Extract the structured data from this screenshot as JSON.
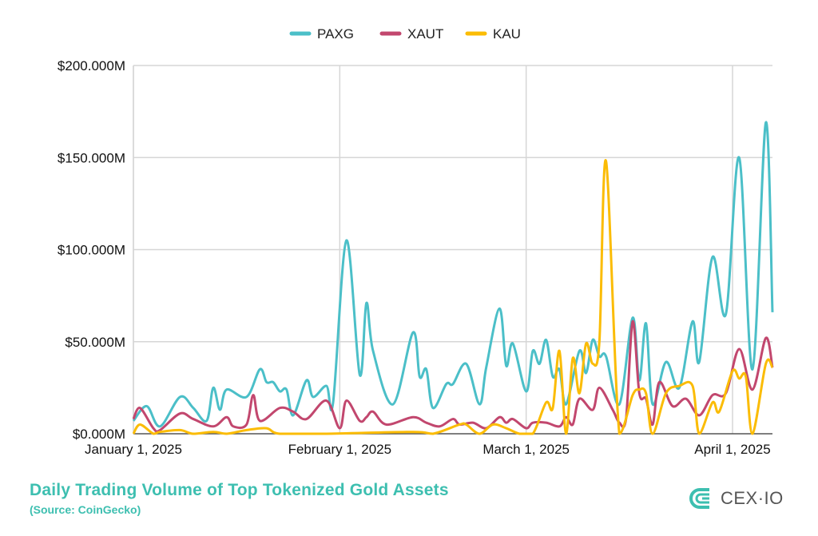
{
  "chart_data": {
    "type": "line",
    "title": "Daily Trading Volume of Top Tokenized Gold Assets",
    "subtitle": "(Source: CoinGecko)",
    "xlabel": "",
    "ylabel": "",
    "x_range": [
      "2025-01-01",
      "2025-04-07"
    ],
    "ylim": [
      0,
      200
    ],
    "y_unit": "millions USD",
    "y_ticks": [
      0,
      50,
      100,
      150,
      200
    ],
    "y_tick_labels": [
      "$0.000M",
      "$50.000M",
      "$100.000M",
      "$150.000M",
      "$200.000M"
    ],
    "x_ticks": [
      "2025-01-01",
      "2025-02-01",
      "2025-03-01",
      "2025-04-01"
    ],
    "x_tick_labels": [
      "January 1, 2025",
      "February 1, 2025",
      "March 1, 2025",
      "April 1, 2025"
    ],
    "grid": true,
    "legend_position": "top-center",
    "series": [
      {
        "name": "PAXG",
        "color": "#4bbfc8",
        "points": [
          [
            "2025-01-01",
            7
          ],
          [
            "2025-01-03",
            15
          ],
          [
            "2025-01-05",
            4
          ],
          [
            "2025-01-08",
            20
          ],
          [
            "2025-01-10",
            14
          ],
          [
            "2025-01-12",
            7
          ],
          [
            "2025-01-13",
            25
          ],
          [
            "2025-01-14",
            13
          ],
          [
            "2025-01-15",
            24
          ],
          [
            "2025-01-18",
            20
          ],
          [
            "2025-01-20",
            35
          ],
          [
            "2025-01-21",
            28
          ],
          [
            "2025-01-22",
            28
          ],
          [
            "2025-01-23",
            23
          ],
          [
            "2025-01-24",
            24
          ],
          [
            "2025-01-25",
            10
          ],
          [
            "2025-01-27",
            29
          ],
          [
            "2025-01-28",
            20
          ],
          [
            "2025-01-30",
            26
          ],
          [
            "2025-01-31",
            17
          ],
          [
            "2025-02-02",
            105
          ],
          [
            "2025-02-04",
            32
          ],
          [
            "2025-02-05",
            71
          ],
          [
            "2025-02-06",
            45
          ],
          [
            "2025-02-09",
            16
          ],
          [
            "2025-02-12",
            55
          ],
          [
            "2025-02-13",
            31
          ],
          [
            "2025-02-14",
            35
          ],
          [
            "2025-02-15",
            14
          ],
          [
            "2025-02-17",
            27
          ],
          [
            "2025-02-18",
            27
          ],
          [
            "2025-02-20",
            38
          ],
          [
            "2025-02-22",
            16
          ],
          [
            "2025-02-23",
            36
          ],
          [
            "2025-02-25",
            68
          ],
          [
            "2025-02-26",
            37
          ],
          [
            "2025-02-27",
            49
          ],
          [
            "2025-03-01",
            23
          ],
          [
            "2025-03-02",
            45
          ],
          [
            "2025-03-03",
            38
          ],
          [
            "2025-03-04",
            51
          ],
          [
            "2025-03-05",
            31
          ],
          [
            "2025-03-06",
            35
          ],
          [
            "2025-03-07",
            16
          ],
          [
            "2025-03-09",
            45
          ],
          [
            "2025-03-10",
            33
          ],
          [
            "2025-03-11",
            51
          ],
          [
            "2025-03-12",
            42
          ],
          [
            "2025-03-13",
            42
          ],
          [
            "2025-03-15",
            16
          ],
          [
            "2025-03-17",
            63
          ],
          [
            "2025-03-18",
            29
          ],
          [
            "2025-03-19",
            60
          ],
          [
            "2025-03-20",
            16
          ],
          [
            "2025-03-22",
            39
          ],
          [
            "2025-03-24",
            25
          ],
          [
            "2025-03-26",
            61
          ],
          [
            "2025-03-27",
            39
          ],
          [
            "2025-03-29",
            96
          ],
          [
            "2025-03-31",
            65
          ],
          [
            "2025-04-02",
            150
          ],
          [
            "2025-04-04",
            35
          ],
          [
            "2025-04-06",
            169
          ],
          [
            "2025-04-07",
            66
          ]
        ]
      },
      {
        "name": "XAUT",
        "color": "#c2476e",
        "points": [
          [
            "2025-01-01",
            8
          ],
          [
            "2025-01-02",
            14
          ],
          [
            "2025-01-04",
            3
          ],
          [
            "2025-01-05",
            2
          ],
          [
            "2025-01-08",
            11
          ],
          [
            "2025-01-10",
            8
          ],
          [
            "2025-01-13",
            4
          ],
          [
            "2025-01-15",
            9
          ],
          [
            "2025-01-16",
            4
          ],
          [
            "2025-01-18",
            5
          ],
          [
            "2025-01-19",
            21
          ],
          [
            "2025-01-20",
            7
          ],
          [
            "2025-01-23",
            14
          ],
          [
            "2025-01-25",
            12
          ],
          [
            "2025-01-27",
            8
          ],
          [
            "2025-01-30",
            18
          ],
          [
            "2025-02-01",
            3
          ],
          [
            "2025-02-02",
            18
          ],
          [
            "2025-02-04",
            7
          ],
          [
            "2025-02-05",
            9
          ],
          [
            "2025-02-06",
            12
          ],
          [
            "2025-02-08",
            5
          ],
          [
            "2025-02-12",
            9
          ],
          [
            "2025-02-14",
            6
          ],
          [
            "2025-02-16",
            4
          ],
          [
            "2025-02-18",
            8
          ],
          [
            "2025-02-19",
            5
          ],
          [
            "2025-02-21",
            6
          ],
          [
            "2025-02-23",
            3
          ],
          [
            "2025-02-25",
            9
          ],
          [
            "2025-02-26",
            6
          ],
          [
            "2025-02-27",
            8
          ],
          [
            "2025-03-01",
            3
          ],
          [
            "2025-03-02",
            6
          ],
          [
            "2025-03-04",
            6
          ],
          [
            "2025-03-06",
            4
          ],
          [
            "2025-03-07",
            9
          ],
          [
            "2025-03-08",
            5
          ],
          [
            "2025-03-09",
            19
          ],
          [
            "2025-03-11",
            13
          ],
          [
            "2025-03-12",
            25
          ],
          [
            "2025-03-14",
            13
          ],
          [
            "2025-03-15",
            6
          ],
          [
            "2025-03-16",
            8
          ],
          [
            "2025-03-17",
            61
          ],
          [
            "2025-03-18",
            22
          ],
          [
            "2025-03-19",
            19
          ],
          [
            "2025-03-20",
            5
          ],
          [
            "2025-03-21",
            28
          ],
          [
            "2025-03-23",
            15
          ],
          [
            "2025-03-25",
            19
          ],
          [
            "2025-03-27",
            10
          ],
          [
            "2025-03-29",
            21
          ],
          [
            "2025-03-31",
            22
          ],
          [
            "2025-04-02",
            46
          ],
          [
            "2025-04-04",
            24
          ],
          [
            "2025-04-06",
            52
          ],
          [
            "2025-04-07",
            36
          ]
        ]
      },
      {
        "name": "KAU",
        "color": "#fbbc05",
        "points": [
          [
            "2025-01-01",
            0
          ],
          [
            "2025-01-02",
            5
          ],
          [
            "2025-01-04",
            0
          ],
          [
            "2025-01-05",
            1
          ],
          [
            "2025-01-08",
            2
          ],
          [
            "2025-01-10",
            0
          ],
          [
            "2025-01-13",
            1
          ],
          [
            "2025-01-15",
            0
          ],
          [
            "2025-01-18",
            2
          ],
          [
            "2025-01-21",
            3
          ],
          [
            "2025-01-23",
            0
          ],
          [
            "2025-01-30",
            0
          ],
          [
            "2025-02-12",
            1
          ],
          [
            "2025-02-15",
            0
          ],
          [
            "2025-02-19",
            5
          ],
          [
            "2025-02-20",
            5
          ],
          [
            "2025-02-22",
            0
          ],
          [
            "2025-02-24",
            5
          ],
          [
            "2025-02-26",
            3
          ],
          [
            "2025-02-28",
            0
          ],
          [
            "2025-03-02",
            0
          ],
          [
            "2025-03-04",
            17
          ],
          [
            "2025-03-05",
            14
          ],
          [
            "2025-03-06",
            45
          ],
          [
            "2025-03-07",
            0
          ],
          [
            "2025-03-08",
            41
          ],
          [
            "2025-03-09",
            22
          ],
          [
            "2025-03-10",
            49
          ],
          [
            "2025-03-11",
            38
          ],
          [
            "2025-03-12",
            50
          ],
          [
            "2025-03-13",
            148
          ],
          [
            "2025-03-15",
            0
          ],
          [
            "2025-03-17",
            21
          ],
          [
            "2025-03-18",
            24
          ],
          [
            "2025-03-19",
            22
          ],
          [
            "2025-03-20",
            0
          ],
          [
            "2025-03-22",
            22
          ],
          [
            "2025-03-24",
            26
          ],
          [
            "2025-03-26",
            26
          ],
          [
            "2025-03-27",
            0
          ],
          [
            "2025-03-29",
            17
          ],
          [
            "2025-03-30",
            12
          ],
          [
            "2025-04-01",
            34
          ],
          [
            "2025-04-02",
            30
          ],
          [
            "2025-04-03",
            31
          ],
          [
            "2025-04-04",
            0
          ],
          [
            "2025-04-06",
            38
          ],
          [
            "2025-04-07",
            36
          ]
        ]
      }
    ]
  },
  "branding": {
    "logo_text": "CEX·IO",
    "logo_color": "#3dbfb0"
  }
}
